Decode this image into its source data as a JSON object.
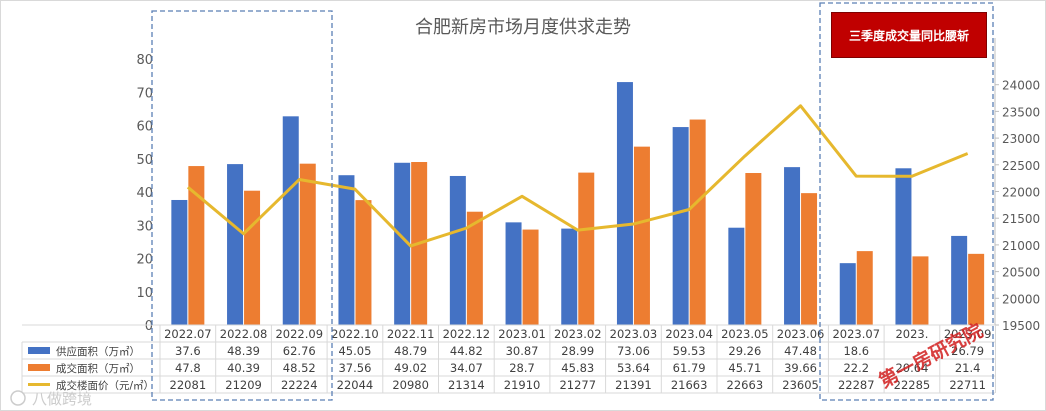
{
  "chart_data": {
    "type": "bar",
    "title": "合肥新房市场月度供求走势",
    "categories": [
      "2022.07",
      "2022.08",
      "2022.09",
      "2022.10",
      "2022.11",
      "2022.12",
      "2023.01",
      "2023.02",
      "2023.03",
      "2023.04",
      "2023.05",
      "2023.06",
      "2023.07",
      "2023.08",
      "2023.09"
    ],
    "categories_visible": [
      "2022.07",
      "2022.08",
      "2022.09",
      "2022.10",
      "2022.11",
      "2022.12",
      "2023.01",
      "2023.02",
      "2023.03",
      "2023.04",
      "2023.05",
      "2023.06",
      "2023.07",
      "2023.",
      "2023.09"
    ],
    "series": [
      {
        "name": "供应面积（万㎡）",
        "type": "bar",
        "axis": "left",
        "color": "#4472c4",
        "values": [
          37.6,
          48.39,
          62.76,
          45.05,
          48.79,
          44.82,
          30.87,
          28.99,
          73.06,
          59.53,
          29.26,
          47.48,
          18.6,
          47.13,
          26.79
        ],
        "table_values": [
          "37.6",
          "48.39",
          "62.76",
          "45.05",
          "48.79",
          "44.82",
          "30.87",
          "28.99",
          "73.06",
          "59.53",
          "29.26",
          "47.48",
          "18.6",
          "",
          "26.79"
        ]
      },
      {
        "name": "成交面积（万㎡）",
        "type": "bar",
        "axis": "left",
        "color": "#ed7d31",
        "values": [
          47.8,
          40.39,
          48.52,
          37.56,
          49.02,
          34.07,
          28.7,
          45.83,
          53.64,
          61.79,
          45.71,
          39.66,
          22.22,
          20.64,
          21.4
        ],
        "table_values": [
          "47.8",
          "40.39",
          "48.52",
          "37.56",
          "49.02",
          "34.07",
          "28.7",
          "45.83",
          "53.64",
          "61.79",
          "45.71",
          "39.66",
          "22.2",
          "20.64",
          "21.4"
        ]
      },
      {
        "name": "成交楼面价（元/㎡）",
        "type": "line",
        "axis": "right",
        "color": "#e6b82e",
        "values": [
          22081,
          21209,
          22224,
          22044,
          20980,
          21314,
          21910,
          21277,
          21391,
          21663,
          22663,
          23605,
          22287,
          22285,
          22711
        ],
        "table_values": [
          "22081",
          "21209",
          "22224",
          "22044",
          "20980",
          "21314",
          "21910",
          "21277",
          "21391",
          "21663",
          "22663",
          "23605",
          "22287",
          "22285",
          "22711"
        ]
      }
    ],
    "ylim_left": [
      0,
      80
    ],
    "yticks_left": [
      "0",
      "10",
      "20",
      "30",
      "40",
      "50",
      "60",
      "70",
      "80"
    ],
    "ylim_right": [
      19500,
      24500
    ],
    "yticks_right": [
      "19500",
      "20000",
      "20500",
      "21000",
      "21500",
      "22000",
      "22500",
      "23000",
      "23500",
      "24000"
    ],
    "grid": false,
    "legend": "data-table-left"
  },
  "badge": {
    "text": "三季度成交量同比腰斩"
  },
  "watermarks": {
    "left": "八做跨境",
    "right": "第一房研究院"
  },
  "colors": {
    "bar_supply": "#4472c4",
    "bar_deal": "#ed7d31",
    "line_price": "#e6b82e",
    "badge_bg": "#c00000",
    "dash_box": "#5b7fb5"
  }
}
